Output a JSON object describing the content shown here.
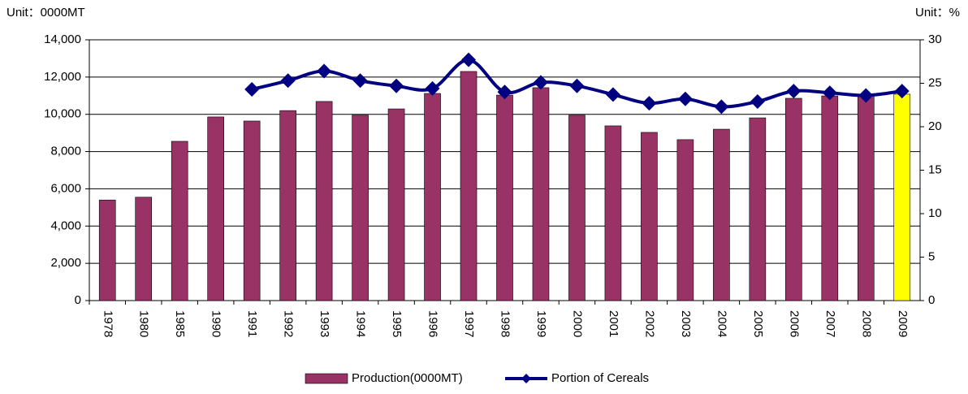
{
  "chart_data": {
    "type": "bar_line",
    "left_unit": "Unit：0000MT",
    "right_unit": "Unit：%",
    "categories": [
      "1978",
      "1980",
      "1985",
      "1990",
      "1991",
      "1992",
      "1993",
      "1994",
      "1995",
      "1996",
      "1997",
      "1998",
      "1999",
      "2000",
      "2001",
      "2002",
      "2003",
      "2004",
      "2005",
      "2006",
      "2007",
      "2008",
      "2009"
    ],
    "series": [
      {
        "name": "Production(0000MT)",
        "type": "bar",
        "color": "#993366",
        "point_colors": [
          "#993366",
          "#993366",
          "#993366",
          "#993366",
          "#993366",
          "#993366",
          "#993366",
          "#993366",
          "#993366",
          "#993366",
          "#993366",
          "#993366",
          "#993366",
          "#993366",
          "#993366",
          "#993366",
          "#993366",
          "#993366",
          "#993366",
          "#993366",
          "#993366",
          "#993366",
          "#ffff00"
        ],
        "values": [
          5400,
          5550,
          8550,
          9860,
          9640,
          10200,
          10690,
          9950,
          10290,
          11120,
          12300,
          11030,
          11430,
          9950,
          9380,
          9030,
          8640,
          9200,
          9810,
          10860,
          10990,
          11000,
          11080
        ]
      },
      {
        "name": "Portion of Cereals",
        "type": "line",
        "axis": "y2",
        "color": "#000080",
        "values": [
          null,
          null,
          null,
          null,
          24.3,
          25.3,
          26.4,
          25.3,
          24.7,
          24.4,
          27.7,
          24.0,
          25.1,
          24.7,
          23.7,
          22.7,
          23.2,
          22.3,
          22.9,
          24.1,
          23.9,
          23.6,
          24.1
        ]
      }
    ],
    "ylim": [
      0,
      14000
    ],
    "yticks": [
      {
        "value": 0,
        "label": "0"
      },
      {
        "value": 2000,
        "label": "2,000"
      },
      {
        "value": 4000,
        "label": "4,000"
      },
      {
        "value": 6000,
        "label": "6,000"
      },
      {
        "value": 8000,
        "label": "8,000"
      },
      {
        "value": 10000,
        "label": "10,000"
      },
      {
        "value": 12000,
        "label": "12,000"
      },
      {
        "value": 14000,
        "label": "14,000"
      }
    ],
    "y2lim": [
      0,
      30
    ],
    "y2ticks": [
      0,
      5,
      10,
      15,
      20,
      25,
      30
    ],
    "grid": true,
    "legend": "bottom"
  }
}
